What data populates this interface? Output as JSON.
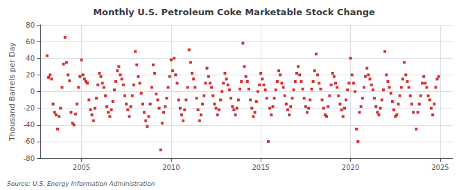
{
  "chart_data": {
    "type": "scatter",
    "title": "Monthly U.S. Petroleum Coke Marketable Stock Change",
    "ylabel": "Thousand Barrels per Day",
    "annotation": "Source: U.S. Energy Information Administration",
    "color": "#cc0000",
    "marker": "square",
    "grid": true,
    "xlim": [
      2002.7,
      2025.7
    ],
    "xticks": [
      2005,
      2010,
      2015,
      2020,
      2025
    ],
    "ylim": [
      -80,
      80
    ],
    "yticks": [
      -80,
      -60,
      -40,
      -20,
      0,
      20,
      40,
      60,
      80
    ],
    "x": [
      2003.083,
      2003.167,
      2003.25,
      2003.333,
      2003.417,
      2003.5,
      2003.583,
      2003.667,
      2003.75,
      2003.833,
      2003.917,
      2004.0,
      2004.083,
      2004.167,
      2004.25,
      2004.333,
      2004.417,
      2004.5,
      2004.583,
      2004.667,
      2004.75,
      2004.833,
      2004.917,
      2005.0,
      2005.083,
      2005.167,
      2005.25,
      2005.333,
      2005.417,
      2005.5,
      2005.583,
      2005.667,
      2005.75,
      2005.833,
      2005.917,
      2006.0,
      2006.083,
      2006.167,
      2006.25,
      2006.333,
      2006.417,
      2006.5,
      2006.583,
      2006.667,
      2006.75,
      2006.833,
      2006.917,
      2007.0,
      2007.083,
      2007.167,
      2007.25,
      2007.333,
      2007.417,
      2007.5,
      2007.583,
      2007.667,
      2007.75,
      2007.833,
      2007.917,
      2008.0,
      2008.083,
      2008.167,
      2008.25,
      2008.333,
      2008.417,
      2008.5,
      2008.583,
      2008.667,
      2008.75,
      2008.833,
      2008.917,
      2009.0,
      2009.083,
      2009.167,
      2009.25,
      2009.333,
      2009.417,
      2009.5,
      2009.583,
      2009.667,
      2009.75,
      2009.833,
      2009.917,
      2010.0,
      2010.083,
      2010.167,
      2010.25,
      2010.333,
      2010.417,
      2010.5,
      2010.583,
      2010.667,
      2010.75,
      2010.833,
      2010.917,
      2011.0,
      2011.083,
      2011.167,
      2011.25,
      2011.333,
      2011.417,
      2011.5,
      2011.583,
      2011.667,
      2011.75,
      2011.833,
      2011.917,
      2012.0,
      2012.083,
      2012.167,
      2012.25,
      2012.333,
      2012.417,
      2012.5,
      2012.583,
      2012.667,
      2012.75,
      2012.833,
      2012.917,
      2013.0,
      2013.083,
      2013.167,
      2013.25,
      2013.333,
      2013.417,
      2013.5,
      2013.583,
      2013.667,
      2013.75,
      2013.833,
      2013.917,
      2014.0,
      2014.083,
      2014.167,
      2014.25,
      2014.333,
      2014.417,
      2014.5,
      2014.583,
      2014.667,
      2014.75,
      2014.833,
      2014.917,
      2015.0,
      2015.083,
      2015.167,
      2015.25,
      2015.333,
      2015.417,
      2015.5,
      2015.583,
      2015.667,
      2015.75,
      2015.833,
      2015.917,
      2016.0,
      2016.083,
      2016.167,
      2016.25,
      2016.333,
      2016.417,
      2016.5,
      2016.583,
      2016.667,
      2016.75,
      2016.833,
      2016.917,
      2017.0,
      2017.083,
      2017.167,
      2017.25,
      2017.333,
      2017.417,
      2017.5,
      2017.583,
      2017.667,
      2017.75,
      2017.833,
      2017.917,
      2018.0,
      2018.083,
      2018.167,
      2018.25,
      2018.333,
      2018.417,
      2018.5,
      2018.583,
      2018.667,
      2018.75,
      2018.833,
      2018.917,
      2019.0,
      2019.083,
      2019.167,
      2019.25,
      2019.333,
      2019.417,
      2019.5,
      2019.583,
      2019.667,
      2019.75,
      2019.833,
      2019.917,
      2020.0,
      2020.083,
      2020.167,
      2020.25,
      2020.333,
      2020.417,
      2020.5,
      2020.583,
      2020.667,
      2020.75,
      2020.833,
      2020.917,
      2021.0,
      2021.083,
      2021.167,
      2021.25,
      2021.333,
      2021.417,
      2021.5,
      2021.583,
      2021.667,
      2021.75,
      2021.833,
      2021.917,
      2022.0,
      2022.083,
      2022.167,
      2022.25,
      2022.333,
      2022.417,
      2022.5,
      2022.583,
      2022.667,
      2022.75,
      2022.833,
      2022.917,
      2023.0,
      2023.083,
      2023.167,
      2023.25,
      2023.333,
      2023.417,
      2023.5,
      2023.667,
      2023.75,
      2023.833,
      2023.917,
      2024.0,
      2024.083,
      2024.167,
      2024.25,
      2024.333,
      2024.417,
      2024.5,
      2024.583,
      2024.667,
      2024.75,
      2024.833,
      2024.917
    ],
    "values": [
      43,
      17,
      20,
      15,
      -15,
      -25,
      -28,
      -45,
      -30,
      -20,
      5,
      33,
      65,
      35,
      20,
      13,
      -25,
      -38,
      -40,
      -27,
      -15,
      5,
      18,
      38,
      20,
      15,
      12,
      10,
      -10,
      -22,
      -28,
      -35,
      -20,
      -8,
      8,
      22,
      18,
      10,
      5,
      -5,
      -18,
      -25,
      -30,
      -22,
      -12,
      2,
      12,
      25,
      30,
      20,
      15,
      8,
      -5,
      -15,
      -22,
      -30,
      -18,
      -5,
      8,
      48,
      32,
      18,
      10,
      -2,
      -15,
      -25,
      -35,
      -42,
      -30,
      -15,
      5,
      32,
      22,
      -3,
      -10,
      -20,
      -70,
      -38,
      -25,
      -18,
      -8,
      5,
      18,
      38,
      25,
      40,
      20,
      10,
      -10,
      -20,
      -28,
      -35,
      -22,
      -10,
      5,
      50,
      35,
      22,
      15,
      5,
      -8,
      -22,
      -35,
      -28,
      -15,
      -5,
      10,
      28,
      18,
      10,
      5,
      -5,
      -15,
      -20,
      -28,
      -22,
      -10,
      0,
      10,
      22,
      15,
      8,
      2,
      -8,
      -18,
      -22,
      -28,
      -20,
      -10,
      3,
      12,
      58,
      30,
      18,
      12,
      3,
      -10,
      -20,
      -30,
      -25,
      -12,
      0,
      8,
      22,
      15,
      8,
      2,
      -8,
      -60,
      -20,
      -28,
      -18,
      -8,
      2,
      12,
      25,
      20,
      10,
      5,
      -5,
      -15,
      -22,
      -28,
      -18,
      -8,
      2,
      12,
      22,
      30,
      20,
      12,
      3,
      -8,
      -18,
      -25,
      -20,
      -10,
      3,
      12,
      25,
      45,
      20,
      10,
      3,
      -10,
      -20,
      -28,
      -30,
      -18,
      -5,
      8,
      22,
      18,
      10,
      5,
      -5,
      -15,
      -22,
      -30,
      -20,
      -10,
      2,
      10,
      40,
      20,
      10,
      0,
      -45,
      -60,
      -25,
      -18,
      -8,
      5,
      18,
      28,
      20,
      15,
      8,
      2,
      -8,
      -18,
      -25,
      -28,
      -20,
      -10,
      2,
      48,
      20,
      12,
      5,
      -2,
      -12,
      -22,
      -30,
      -28,
      -15,
      -5,
      5,
      15,
      35,
      20,
      12,
      5,
      -5,
      -15,
      -25,
      -45,
      -25,
      -15,
      -5,
      10,
      18,
      10,
      5,
      -5,
      -10,
      -20,
      -28,
      -15,
      5,
      15,
      18
    ]
  }
}
